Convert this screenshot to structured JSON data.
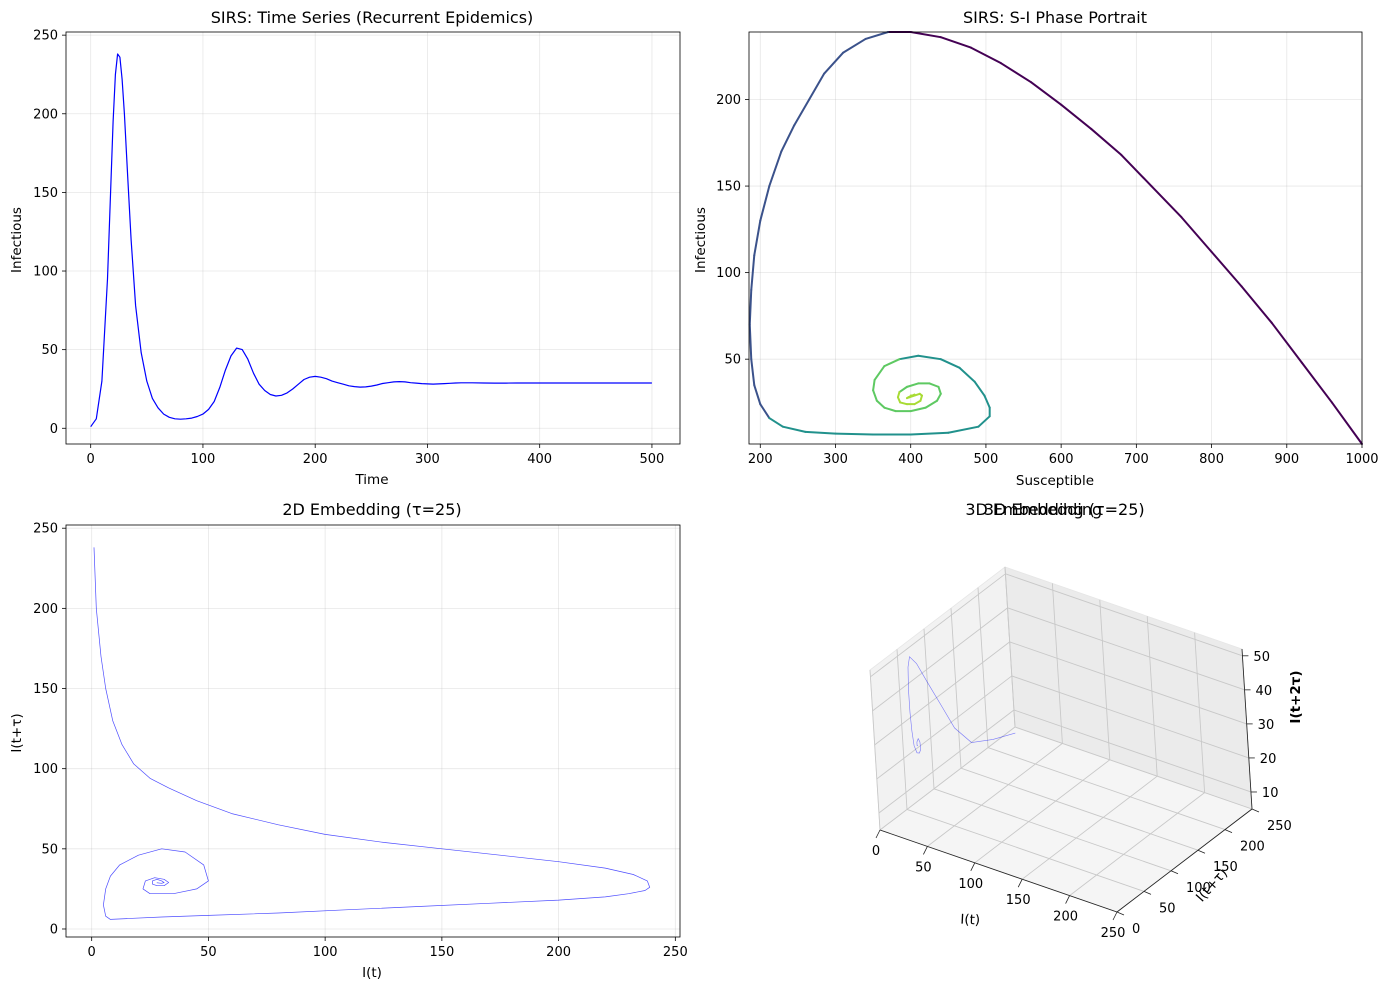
{
  "chart_data": [
    {
      "type": "line",
      "title": "SIRS: Time Series (Recurrent Epidemics)",
      "xlabel": "Time",
      "ylabel": "Infectious",
      "xlim": [
        -22,
        525
      ],
      "ylim": [
        -10,
        252
      ],
      "xticks": [
        0,
        100,
        200,
        300,
        400,
        500
      ],
      "yticks": [
        0,
        50,
        100,
        150,
        200,
        250
      ],
      "grid": true,
      "line_color": "#0000ff",
      "series": [
        {
          "x": [
            0,
            5,
            10,
            15,
            20,
            22,
            24,
            26,
            28,
            30,
            33,
            36,
            40,
            45,
            50,
            55,
            60,
            65,
            70,
            75,
            80,
            85,
            90,
            95,
            100,
            105,
            110,
            115,
            120,
            125,
            130,
            135,
            140,
            145,
            150,
            155,
            160,
            165,
            170,
            175,
            180,
            185,
            190,
            195,
            200,
            205,
            210,
            215,
            220,
            225,
            230,
            235,
            240,
            245,
            250,
            255,
            260,
            265,
            270,
            275,
            280,
            285,
            290,
            295,
            300,
            305,
            310,
            315,
            320,
            325,
            330,
            340,
            350,
            360,
            370,
            380,
            390,
            400,
            410,
            420,
            430,
            440,
            450,
            460,
            470,
            480,
            490,
            500
          ],
          "y": [
            1,
            6,
            30,
            95,
            195,
            225,
            238,
            236,
            222,
            200,
            160,
            120,
            78,
            48,
            30,
            19,
            13,
            9,
            7,
            6,
            5.8,
            6,
            6.5,
            7.5,
            9,
            12,
            17,
            26,
            37,
            46,
            51,
            50,
            44,
            35,
            28,
            24,
            21.5,
            20.5,
            21,
            22.5,
            25,
            28,
            31,
            32.5,
            33,
            32.5,
            31.5,
            30,
            29,
            28,
            27,
            26.5,
            26.2,
            26.3,
            26.8,
            27.5,
            28.5,
            29,
            29.5,
            29.7,
            29.5,
            29,
            28.7,
            28.4,
            28.2,
            28.1,
            28.2,
            28.4,
            28.6,
            28.8,
            28.9,
            28.9,
            28.8,
            28.7,
            28.7,
            28.8,
            28.8,
            28.8,
            28.8,
            28.8,
            28.8,
            28.8,
            28.8,
            28.8,
            28.8,
            28.8,
            28.8,
            28.8
          ]
        }
      ]
    },
    {
      "type": "line",
      "title": "SIRS: S-I Phase Portrait",
      "xlabel": "Susceptible",
      "ylabel": "Infectious",
      "xlim": [
        185,
        1000
      ],
      "ylim": [
        1,
        239
      ],
      "xticks": [
        200,
        300,
        400,
        500,
        600,
        700,
        800,
        900,
        1000
      ],
      "yticks": [
        50,
        100,
        150,
        200
      ],
      "grid": true,
      "colormap": [
        "#440154",
        "#3b528b",
        "#21918c",
        "#5ec962",
        "#a8db34"
      ],
      "series": [
        {
          "x": [
            1000,
            960,
            920,
            880,
            840,
            800,
            760,
            720,
            680,
            640,
            600,
            560,
            520,
            480,
            440,
            400,
            370,
            340,
            310,
            285,
            265,
            245,
            228,
            212,
            200,
            192,
            188,
            186,
            188,
            192,
            200,
            212,
            230,
            260,
            300,
            350,
            400,
            450,
            490,
            505,
            505,
            498,
            485,
            465,
            440,
            410,
            385,
            365,
            352,
            350,
            355,
            365,
            380,
            400,
            420,
            435,
            440,
            437,
            425,
            410,
            395,
            385,
            383,
            386,
            395,
            405,
            413,
            415,
            412,
            405,
            398,
            395,
            397,
            402,
            405,
            403,
            400
          ],
          "y": [
            1,
            25,
            48,
            71,
            92,
            112,
            132,
            150,
            168,
            183,
            197,
            210,
            221,
            230,
            236,
            239,
            239,
            235,
            227,
            215,
            200,
            185,
            170,
            150,
            130,
            110,
            90,
            70,
            50,
            35,
            24,
            16,
            11,
            8,
            7,
            6.5,
            6.5,
            7.5,
            11,
            17,
            22,
            29,
            37,
            45,
            50,
            52,
            50,
            46,
            38,
            32,
            26,
            22,
            20,
            20,
            22,
            26,
            30,
            34,
            36,
            36,
            34,
            31,
            28,
            25,
            24,
            24,
            26,
            29,
            30,
            29,
            28,
            27.5,
            28,
            29,
            29.5,
            29,
            29
          ]
        }
      ]
    },
    {
      "type": "line",
      "title": "2D Embedding (τ=25)",
      "xlabel": "I(t)",
      "ylabel": "I(t+τ)",
      "xlim": [
        -11,
        252
      ],
      "ylim": [
        -5,
        252
      ],
      "xticks": [
        0,
        50,
        100,
        150,
        200,
        250
      ],
      "yticks": [
        0,
        50,
        100,
        150,
        200,
        250
      ],
      "grid": true,
      "line_color": "#0000ff",
      "series": [
        {
          "x": [
            1,
            2,
            4,
            6,
            9,
            13,
            18,
            25,
            33,
            45,
            60,
            80,
            100,
            125,
            150,
            175,
            200,
            220,
            232,
            238,
            239,
            237,
            230,
            220,
            200,
            170,
            140,
            110,
            80,
            50,
            30,
            15,
            8,
            6,
            5,
            6,
            8,
            12,
            20,
            30,
            40,
            48,
            50,
            45,
            35,
            25,
            22,
            23,
            27,
            31,
            33,
            31,
            28,
            26,
            26,
            28,
            30,
            31,
            30,
            28,
            28.5
          ],
          "y": [
            238,
            200,
            170,
            150,
            130,
            115,
            103,
            94,
            88,
            80,
            72,
            65,
            59,
            54,
            50,
            46,
            42,
            38,
            34,
            30,
            26,
            24,
            22,
            20,
            18,
            16,
            14,
            12,
            10,
            8.5,
            7.5,
            6.5,
            6,
            8,
            15,
            25,
            33,
            40,
            46,
            50,
            48,
            40,
            30,
            25,
            22,
            22,
            25,
            30,
            32,
            31,
            29,
            27,
            27,
            28,
            30,
            31,
            30,
            29,
            28.5,
            28.8,
            28.8
          ]
        }
      ]
    },
    {
      "type": "line",
      "title": "3D Embedding (τ=25)",
      "title_overlap": "3D Embedding",
      "xlabel": "I(t)",
      "ylabel": "I(t+τ)",
      "zlabel": "I(t+2τ)",
      "xlim": [
        0,
        250
      ],
      "ylim": [
        0,
        250
      ],
      "zlim": [
        5,
        52
      ],
      "xticks": [
        0,
        50,
        100,
        150,
        200,
        250
      ],
      "yticks": [
        0,
        50,
        100,
        150,
        200,
        250
      ],
      "zticks": [
        10,
        20,
        30,
        40,
        50
      ],
      "grid": true,
      "line_color": "#0000ff",
      "series": [
        {
          "x": [
            6,
            6,
            7,
            8,
            10,
            12,
            14,
            16,
            18,
            20,
            22,
            24,
            26,
            28,
            30,
            31,
            30,
            29,
            28,
            28,
            29,
            29,
            29
          ],
          "y": [
            240,
            200,
            160,
            130,
            105,
            80,
            60,
            45,
            38,
            33,
            30,
            28,
            27,
            28,
            29,
            30,
            31,
            30,
            29,
            29,
            29,
            29,
            29
          ],
          "z": [
            5,
            8,
            12,
            20,
            30,
            40,
            48,
            52,
            50,
            44,
            38,
            33,
            29,
            27,
            27,
            28,
            30,
            31,
            30,
            29,
            29,
            29,
            29
          ]
        }
      ]
    }
  ]
}
